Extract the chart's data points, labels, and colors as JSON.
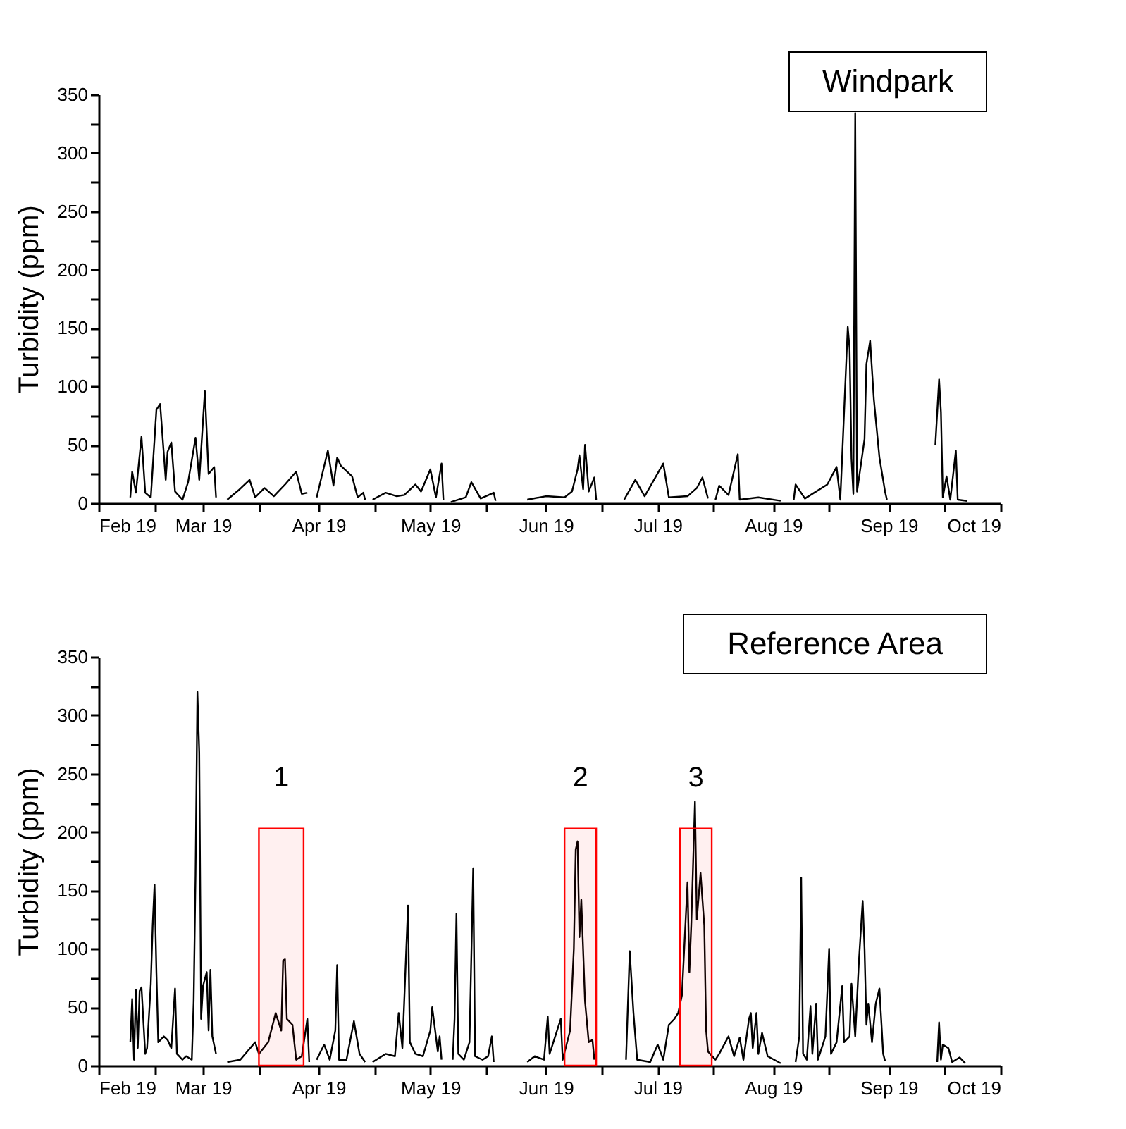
{
  "chart_data": [
    {
      "type": "line",
      "title": "Windpark",
      "ylabel": "Turbidity (ppm)",
      "xlim": [
        "2019-02-01",
        "2019-10-01"
      ],
      "xticks": [
        {
          "value": "2019-02-01",
          "label": "Feb 19"
        },
        {
          "value": "2019-02-16",
          "label": null
        },
        {
          "value": "2019-03-01",
          "label": "Mar 19"
        },
        {
          "value": "2019-03-16",
          "label": null
        },
        {
          "value": "2019-04-01",
          "label": "Apr 19"
        },
        {
          "value": "2019-04-16",
          "label": null
        },
        {
          "value": "2019-05-01",
          "label": "May 19"
        },
        {
          "value": "2019-05-16",
          "label": null
        },
        {
          "value": "2019-06-01",
          "label": "Jun 19"
        },
        {
          "value": "2019-06-16",
          "label": null
        },
        {
          "value": "2019-07-01",
          "label": "Jul 19"
        },
        {
          "value": "2019-07-16",
          "label": null
        },
        {
          "value": "2019-08-01",
          "label": "Aug 19"
        },
        {
          "value": "2019-08-16",
          "label": null
        },
        {
          "value": "2019-09-01",
          "label": "Sep 19"
        },
        {
          "value": "2019-09-16",
          "label": null
        },
        {
          "value": "2019-10-01",
          "label": "Oct 19"
        }
      ],
      "ylim": [
        0,
        350
      ],
      "yticks": [
        0,
        {
          "value": 25,
          "label": null
        },
        50,
        {
          "value": 75,
          "label": null
        },
        100,
        {
          "value": 125,
          "label": null
        },
        150,
        {
          "value": 175,
          "label": null
        },
        200,
        {
          "value": 225,
          "label": null
        },
        250,
        {
          "value": 275,
          "label": null
        },
        300,
        {
          "value": 325,
          "label": null
        },
        350
      ],
      "x": [
        "2019-02-09T12:00",
        "2019-02-10",
        "2019-02-11",
        "2019-02-12T12:00",
        "2019-02-13T12:00",
        "2019-02-15",
        "2019-02-16T12:00",
        "2019-02-17T12:00",
        "2019-02-19",
        "2019-02-19T12:00",
        "2019-02-20T12:00",
        "2019-02-21T12:00",
        "2019-02-23T12:00",
        "2019-02-25",
        "2019-02-27",
        "2019-02-28",
        "2019-03-01T12:00",
        "2019-03-02T12:00",
        "2019-03-04",
        "2019-03-04T12:00",
        "2019-03-06",
        "2019-03-07T12:00",
        "2019-03-10T12:00",
        "2019-03-13T12:00",
        "2019-03-15",
        "2019-03-17T12:00",
        "2019-03-20",
        "2019-03-23",
        "2019-03-26",
        "2019-03-27T12:00",
        "2019-03-29",
        "2019-03-30",
        "2019-03-31T12:00",
        "2019-04-03T12:00",
        "2019-04-05",
        "2019-04-06",
        "2019-04-07",
        "2019-04-10",
        "2019-04-11T12:00",
        "2019-04-13",
        "2019-04-13T12:00",
        "2019-04-14T12:00",
        "2019-04-15T12:00",
        "2019-04-19",
        "2019-04-22",
        "2019-04-24",
        "2019-04-27",
        "2019-04-28T12:00",
        "2019-05-01",
        "2019-05-02T12:00",
        "2019-05-04",
        "2019-05-04T12:00",
        "2019-05-05T12:00",
        "2019-05-06T12:00",
        "2019-05-10T12:00",
        "2019-05-12",
        "2019-05-14T12:00",
        "2019-05-18",
        "2019-05-18T12:00",
        "2019-05-22",
        "2019-05-27",
        "2019-06-01",
        "2019-06-06",
        "2019-06-08",
        "2019-06-09T12:00",
        "2019-06-10",
        "2019-06-11",
        "2019-06-11T12:00",
        "2019-06-12T12:00",
        "2019-06-14",
        "2019-06-14T12:00",
        "2019-06-18",
        "2019-06-22",
        "2019-06-25",
        "2019-06-27T12:00",
        "2019-07-02T12:00",
        "2019-07-04",
        "2019-07-09",
        "2019-07-11T12:00",
        "2019-07-13",
        "2019-07-14T12:00",
        "2019-07-15T12:00",
        "2019-07-16T12:00",
        "2019-07-17T12:00",
        "2019-07-20",
        "2019-07-22T12:00",
        "2019-07-23",
        "2019-07-28",
        "2019-08-03",
        "2019-08-05",
        "2019-08-06T12:00",
        "2019-08-07",
        "2019-08-09T12:00",
        "2019-08-15T12:00",
        "2019-08-18",
        "2019-08-19",
        "2019-08-21",
        "2019-08-21T12:00",
        "2019-08-22",
        "2019-08-22T12:00",
        "2019-08-23",
        "2019-08-23T12:00",
        "2019-08-25T12:00",
        "2019-08-26",
        "2019-08-27",
        "2019-08-28",
        "2019-08-29T12:00",
        "2019-08-31",
        "2019-08-31T12:00",
        "2019-09-07",
        "2019-09-13T12:00",
        "2019-09-14T12:00",
        "2019-09-15",
        "2019-09-15T12:00",
        "2019-09-16T12:00",
        "2019-09-17T12:00",
        "2019-09-19",
        "2019-09-19T12:00",
        "2019-09-22"
      ],
      "series": [
        {
          "color": "#000000",
          "values": [
            5,
            27,
            9,
            57,
            9,
            5,
            80,
            85,
            20,
            44,
            52,
            10,
            3,
            18,
            56,
            20,
            96,
            25,
            31,
            5,
            null,
            3,
            11,
            20,
            5,
            13,
            6,
            16,
            27,
            8,
            9,
            null,
            5,
            45,
            15,
            39,
            32,
            23,
            5,
            9,
            3,
            null,
            3,
            9,
            6,
            7,
            16,
            10,
            29,
            5,
            34,
            3,
            null,
            1,
            5,
            18,
            4,
            9,
            2,
            null,
            3,
            6,
            5,
            10,
            29,
            41,
            12,
            50,
            10,
            22,
            3,
            null,
            3,
            20,
            6,
            34,
            5,
            6,
            13,
            22,
            4,
            null,
            3,
            15,
            7,
            42,
            3,
            5,
            2,
            null,
            3,
            16,
            4,
            16,
            31,
            3,
            151,
            132,
            38,
            8,
            334,
            10,
            55,
            119,
            139,
            89,
            39,
            10,
            3,
            null,
            50,
            106,
            78,
            5,
            23,
            3,
            45,
            3,
            2
          ]
        }
      ]
    },
    {
      "type": "line",
      "title": "Reference Area",
      "ylabel": "Turbidity (ppm)",
      "xlim": [
        "2019-02-01",
        "2019-10-01"
      ],
      "xticks": [
        {
          "value": "2019-02-01",
          "label": "Feb 19"
        },
        {
          "value": "2019-02-16",
          "label": null
        },
        {
          "value": "2019-03-01",
          "label": "Mar 19"
        },
        {
          "value": "2019-03-16",
          "label": null
        },
        {
          "value": "2019-04-01",
          "label": "Apr 19"
        },
        {
          "value": "2019-04-16",
          "label": null
        },
        {
          "value": "2019-05-01",
          "label": "May 19"
        },
        {
          "value": "2019-05-16",
          "label": null
        },
        {
          "value": "2019-06-01",
          "label": "Jun 19"
        },
        {
          "value": "2019-06-16",
          "label": null
        },
        {
          "value": "2019-07-01",
          "label": "Jul 19"
        },
        {
          "value": "2019-07-16",
          "label": null
        },
        {
          "value": "2019-08-01",
          "label": "Aug 19"
        },
        {
          "value": "2019-08-16",
          "label": null
        },
        {
          "value": "2019-09-01",
          "label": "Sep 19"
        },
        {
          "value": "2019-09-16",
          "label": null
        },
        {
          "value": "2019-10-01",
          "label": "Oct 19"
        }
      ],
      "ylim": [
        0,
        350
      ],
      "yticks": [
        0,
        {
          "value": 25,
          "label": null
        },
        50,
        {
          "value": 75,
          "label": null
        },
        100,
        {
          "value": 125,
          "label": null
        },
        150,
        {
          "value": 175,
          "label": null
        },
        200,
        {
          "value": 225,
          "label": null
        },
        250,
        {
          "value": 275,
          "label": null
        },
        300,
        {
          "value": 325,
          "label": null
        },
        350
      ],
      "bands": [
        {
          "axis": "x",
          "from": "2019-03-16",
          "to": "2019-03-28",
          "label": "1",
          "color": "#ff0000"
        },
        {
          "axis": "x",
          "from": "2019-06-06",
          "to": "2019-06-14T12:00",
          "label": "2",
          "color": "#ff0000"
        },
        {
          "axis": "x",
          "from": "2019-07-07",
          "to": "2019-07-15T12:00",
          "label": "3",
          "color": "#ff0000"
        }
      ],
      "x": [
        "2019-02-09T12:00",
        "2019-02-10",
        "2019-02-10T12:00",
        "2019-02-11",
        "2019-02-11T12:00",
        "2019-02-12",
        "2019-02-12T12:00",
        "2019-02-13T12:00",
        "2019-02-14",
        "2019-02-15",
        "2019-02-15T12:00",
        "2019-02-16",
        "2019-02-16T12:00",
        "2019-02-17",
        "2019-02-18T12:00",
        "2019-02-19T12:00",
        "2019-02-20T12:00",
        "2019-02-21T12:00",
        "2019-02-22",
        "2019-02-23T12:00",
        "2019-02-24T12:00",
        "2019-02-26",
        "2019-02-26T12:00",
        "2019-02-27",
        "2019-02-27T12:00",
        "2019-02-28",
        "2019-02-28T12:00",
        "2019-03-01",
        "2019-03-02",
        "2019-03-02T12:00",
        "2019-03-03",
        "2019-03-03T12:00",
        "2019-03-04T12:00",
        "2019-03-06",
        "2019-03-07T12:00",
        "2019-03-11",
        "2019-03-15",
        "2019-03-16",
        "2019-03-18T12:00",
        "2019-03-20T12:00",
        "2019-03-22",
        "2019-03-22T12:00",
        "2019-03-23",
        "2019-03-23T12:00",
        "2019-03-25",
        "2019-03-26",
        "2019-03-27T12:00",
        "2019-03-29",
        "2019-03-29T12:00",
        "2019-03-30T12:00",
        "2019-03-31T12:00",
        "2019-04-02T12:00",
        "2019-04-04",
        "2019-04-05T12:00",
        "2019-04-06",
        "2019-04-06T12:00",
        "2019-04-08T12:00",
        "2019-04-10T12:00",
        "2019-04-12",
        "2019-04-13T12:00",
        "2019-04-14T12:00",
        "2019-04-15T12:00",
        "2019-04-19",
        "2019-04-21T12:00",
        "2019-04-22T12:00",
        "2019-04-23T12:00",
        "2019-04-25",
        "2019-04-25T12:00",
        "2019-04-27",
        "2019-04-29",
        "2019-05-01",
        "2019-05-01T12:00",
        "2019-05-03",
        "2019-05-03T12:00",
        "2019-05-04",
        "2019-05-05T12:00",
        "2019-05-07",
        "2019-05-07T12:00",
        "2019-05-08",
        "2019-05-08T12:00",
        "2019-05-10",
        "2019-05-11T12:00",
        "2019-05-12T12:00",
        "2019-05-13",
        "2019-05-15",
        "2019-05-16T12:00",
        "2019-05-17T12:00",
        "2019-05-18",
        "2019-05-22",
        "2019-05-27",
        "2019-05-29",
        "2019-05-31T12:00",
        "2019-06-01T12:00",
        "2019-06-02",
        "2019-06-03T12:00",
        "2019-06-05",
        "2019-06-05T12:00",
        "2019-06-07T12:00",
        "2019-06-08T12:00",
        "2019-06-09",
        "2019-06-09T12:00",
        "2019-06-10",
        "2019-06-10T12:00",
        "2019-06-11T12:00",
        "2019-06-12T12:00",
        "2019-06-13T12:00",
        "2019-06-14",
        "2019-06-18",
        "2019-06-22T12:00",
        "2019-06-23T12:00",
        "2019-06-24T12:00",
        "2019-06-25T12:00",
        "2019-06-29",
        "2019-07-01",
        "2019-07-02T12:00",
        "2019-07-04",
        "2019-07-05T12:00",
        "2019-07-06T12:00",
        "2019-07-07T12:00",
        "2019-07-09",
        "2019-07-09T12:00",
        "2019-07-10",
        "2019-07-11",
        "2019-07-11T12:00",
        "2019-07-12T12:00",
        "2019-07-13T12:00",
        "2019-07-14",
        "2019-07-14T12:00",
        "2019-07-16T12:00",
        "2019-07-17T12:00",
        "2019-07-20",
        "2019-07-21T12:00",
        "2019-07-23",
        "2019-07-24",
        "2019-07-25T12:00",
        "2019-07-26",
        "2019-07-26T12:00",
        "2019-07-27T12:00",
        "2019-07-28",
        "2019-07-29",
        "2019-07-30T12:00",
        "2019-08-03",
        "2019-08-05",
        "2019-08-07",
        "2019-08-08",
        "2019-08-08T12:00",
        "2019-08-09",
        "2019-08-10",
        "2019-08-11",
        "2019-08-11T12:00",
        "2019-08-12T12:00",
        "2019-08-13",
        "2019-08-15",
        "2019-08-16",
        "2019-08-16T12:00",
        "2019-08-18",
        "2019-08-19T12:00",
        "2019-08-20",
        "2019-08-21T12:00",
        "2019-08-22",
        "2019-08-23",
        "2019-08-24",
        "2019-08-25",
        "2019-08-25T12:00",
        "2019-08-26",
        "2019-08-26T12:00",
        "2019-08-27T12:00",
        "2019-08-28T12:00",
        "2019-08-29T12:00",
        "2019-08-30T12:00",
        "2019-08-31",
        "2019-09-07",
        "2019-09-14",
        "2019-09-14T12:00",
        "2019-09-15",
        "2019-09-15T12:00",
        "2019-09-17",
        "2019-09-18",
        "2019-09-20",
        "2019-09-21T12:00"
      ],
      "series": [
        {
          "color": "#000000",
          "values": [
            20,
            57,
            5,
            65,
            15,
            64,
            67,
            10,
            15,
            70,
            120,
            155,
            80,
            20,
            25,
            22,
            15,
            66,
            10,
            5,
            8,
            5,
            55,
            163,
            320,
            268,
            40,
            68,
            80,
            30,
            82,
            25,
            10,
            null,
            3,
            5,
            20,
            10,
            20,
            45,
            30,
            90,
            91,
            40,
            35,
            5,
            8,
            40,
            3,
            null,
            5,
            18,
            5,
            30,
            86,
            5,
            5,
            38,
            10,
            3,
            null,
            3,
            10,
            8,
            45,
            15,
            137,
            20,
            10,
            8,
            30,
            50,
            12,
            25,
            5,
            null,
            5,
            40,
            130,
            10,
            5,
            20,
            169,
            8,
            5,
            8,
            25,
            3,
            null,
            3,
            8,
            5,
            42,
            10,
            25,
            40,
            5,
            30,
            100,
            185,
            192,
            110,
            142,
            55,
            20,
            22,
            5,
            null,
            5,
            98,
            45,
            5,
            3,
            18,
            5,
            35,
            40,
            45,
            60,
            157,
            80,
            120,
            226,
            125,
            165,
            120,
            30,
            12,
            5,
            10,
            25,
            8,
            24,
            5,
            40,
            45,
            15,
            45,
            10,
            28,
            8,
            2,
            null,
            3,
            25,
            161,
            10,
            5,
            51,
            10,
            53,
            5,
            25,
            100,
            10,
            20,
            68,
            20,
            25,
            70,
            25,
            90,
            141,
            100,
            35,
            53,
            20,
            53,
            66,
            10,
            4,
            null,
            3,
            37,
            5,
            18,
            15,
            3,
            7,
            2
          ]
        }
      ]
    }
  ]
}
